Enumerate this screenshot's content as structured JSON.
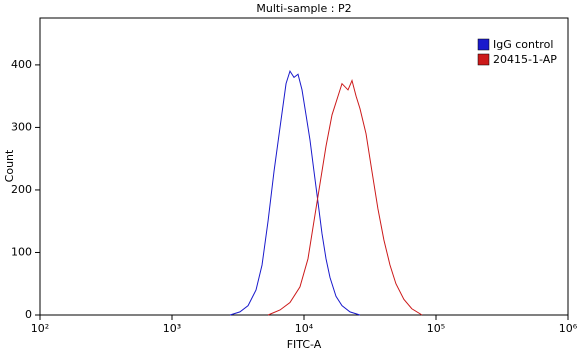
{
  "chart_data": {
    "type": "line",
    "title": "Multi-sample : P2",
    "xlabel": "FITC-A",
    "ylabel": "Count",
    "xscale": "log",
    "xlim": [
      100,
      1000000
    ],
    "xticks": [
      {
        "value": 100,
        "label": "10²"
      },
      {
        "value": 1000,
        "label": "10³"
      },
      {
        "value": 10000,
        "label": "10⁴"
      },
      {
        "value": 100000,
        "label": "10⁵"
      },
      {
        "value": 1000000,
        "label": "10⁶"
      }
    ],
    "ylim": [
      0,
      475
    ],
    "yticks": [
      0,
      100,
      200,
      300,
      400
    ],
    "legend": "top-right",
    "series": [
      {
        "name": "IgG control",
        "color": "#1a1acc",
        "x": [
          2750,
          3270,
          3770,
          4330,
          4810,
          5340,
          5930,
          6580,
          7310,
          7830,
          8400,
          9010,
          9660,
          10360,
          11100,
          11900,
          12770,
          13690,
          14680,
          15740,
          17470,
          19400,
          22300,
          26550
        ],
        "values": [
          0,
          5,
          15,
          40,
          80,
          150,
          230,
          300,
          370,
          390,
          380,
          385,
          360,
          320,
          280,
          230,
          180,
          130,
          90,
          60,
          30,
          15,
          5,
          0
        ]
      },
      {
        "name": "20415-1-AP",
        "color": "#cc1a1a",
        "x": [
          5340,
          6580,
          7830,
          9320,
          10720,
          11900,
          13220,
          14680,
          16300,
          18100,
          19400,
          21550,
          23100,
          24800,
          26550,
          29500,
          32700,
          36300,
          40300,
          44800,
          49700,
          57100,
          65600,
          78400
        ],
        "values": [
          0,
          8,
          20,
          45,
          90,
          150,
          210,
          270,
          320,
          350,
          370,
          360,
          375,
          350,
          330,
          290,
          230,
          170,
          120,
          80,
          50,
          25,
          10,
          0
        ]
      }
    ]
  }
}
